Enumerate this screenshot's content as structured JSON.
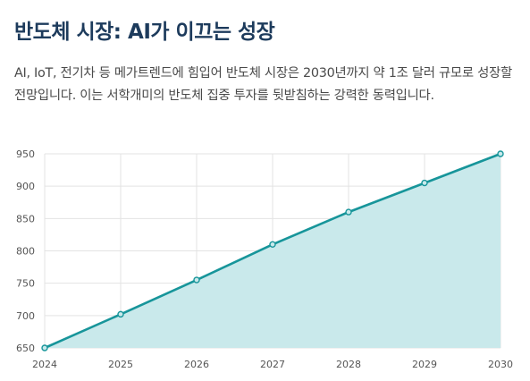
{
  "title": "반도체 시장: AI가 이끄는 성장",
  "description": "AI, IoT, 전기차 등 메가트렌드에 힘입어 반도체 시장은 2030년까지 약 1조 달러 규모로 성장할 전망입니다. 이는 서학개미의 반도체 집중 투자를 뒷받침하는 강력한 동력입니다.",
  "chart_data": {
    "type": "area",
    "x": [
      "2024",
      "2025",
      "2026",
      "2027",
      "2028",
      "2029",
      "2030"
    ],
    "series": [
      {
        "values": [
          650,
          702,
          755,
          810,
          860,
          905,
          950
        ]
      }
    ],
    "ylim": [
      650,
      950
    ],
    "yticks": [
      650,
      700,
      750,
      800,
      850,
      900,
      950
    ],
    "grid": true,
    "line_color": "#17959a",
    "fill_color": "#c9e9eb",
    "grid_color": "#e3e3e3"
  }
}
